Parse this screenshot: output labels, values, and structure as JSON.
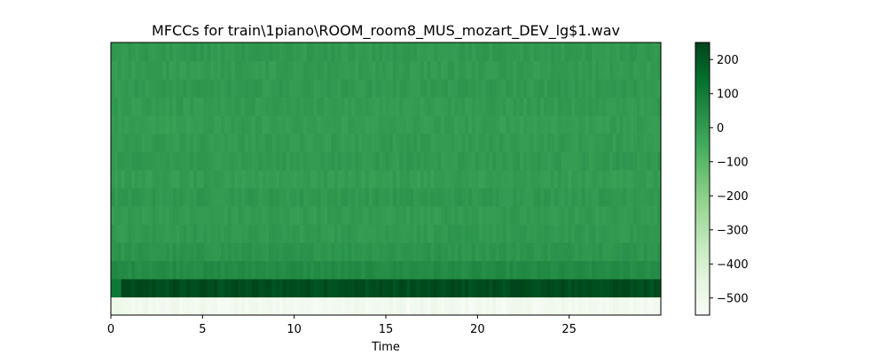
{
  "chart_data": {
    "type": "heatmap",
    "title": "MFCCs for train\\1piano\\ROOM_room8_MUS_mozart_DEV_lg$1.wav",
    "xlabel": "Time",
    "ylabel": "",
    "x_ticks": [
      0,
      5,
      10,
      15,
      20,
      25
    ],
    "xlim": [
      0,
      30
    ],
    "n_time_frames": 160,
    "n_coefficients": 15,
    "coefficient_means": [
      -520,
      230,
      50,
      20,
      5,
      0,
      10,
      -5,
      5,
      0,
      -5,
      0,
      5,
      0,
      5
    ],
    "colorbar": {
      "vmin": -550,
      "vmax": 250,
      "ticks": [
        200,
        100,
        0,
        -100,
        -200,
        -300,
        -400,
        -500
      ],
      "tick_labels": [
        "200",
        "100",
        "0",
        "−100",
        "−200",
        "−300",
        "−400",
        "−500"
      ],
      "colormap": "Greens"
    },
    "colors": {
      "low": "#f7fcf5",
      "high": "#00441b"
    }
  }
}
